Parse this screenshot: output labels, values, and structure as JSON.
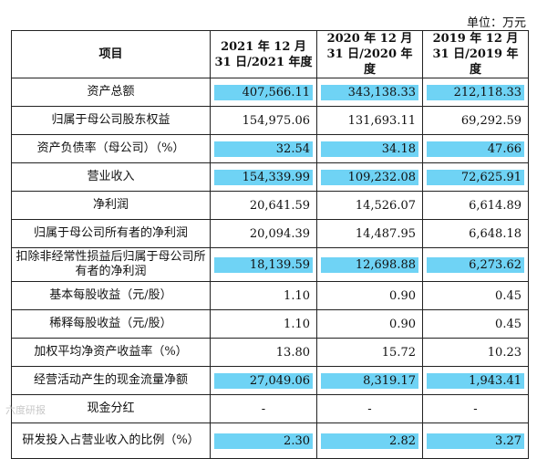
{
  "unit": "单位：万元",
  "headers": [
    "项目",
    "2021 年 12 月 31 日/2021 年度",
    "2020 年 12 月 31 日/2020 年度",
    "2019 年 12 月 31 日/2019 年度"
  ],
  "highlight_color": "#6fd3f5",
  "rows": [
    {
      "label": "资产总额",
      "values": [
        "407,566.11",
        "343,138.33",
        "212,118.33"
      ],
      "hl": [
        true,
        true,
        true
      ]
    },
    {
      "label": "归属于母公司股东权益",
      "values": [
        "154,975.06",
        "131,693.11",
        "69,292.59"
      ],
      "hl": [
        false,
        false,
        false
      ]
    },
    {
      "label": "资产负债率（母公司）（%）",
      "values": [
        "32.54",
        "34.18",
        "47.66"
      ],
      "hl": [
        true,
        true,
        true
      ]
    },
    {
      "label": "营业收入",
      "values": [
        "154,339.99",
        "109,232.08",
        "72,625.91"
      ],
      "hl": [
        true,
        true,
        true
      ]
    },
    {
      "label": "净利润",
      "values": [
        "20,641.59",
        "14,526.07",
        "6,614.89"
      ],
      "hl": [
        false,
        false,
        false
      ]
    },
    {
      "label": "归属于母公司所有者的净利润",
      "values": [
        "20,094.39",
        "14,487.95",
        "6,648.18"
      ],
      "hl": [
        false,
        false,
        false
      ]
    },
    {
      "label": "扣除非经常性损益后归属于母公司所有者的净利润",
      "values": [
        "18,139.59",
        "12,698.88",
        "6,273.62"
      ],
      "hl": [
        true,
        true,
        true
      ]
    },
    {
      "label": "基本每股收益（元/股）",
      "values": [
        "1.10",
        "0.90",
        "0.45"
      ],
      "hl": [
        false,
        false,
        false
      ]
    },
    {
      "label": "稀释每股收益（元/股）",
      "values": [
        "1.10",
        "0.90",
        "0.45"
      ],
      "hl": [
        false,
        false,
        false
      ]
    },
    {
      "label": "加权平均净资产收益率（%）",
      "values": [
        "13.80",
        "15.72",
        "10.23"
      ],
      "hl": [
        false,
        false,
        false
      ]
    },
    {
      "label": "经营活动产生的现金流量净额",
      "values": [
        "27,049.06",
        "8,319.17",
        "1,943.41"
      ],
      "hl": [
        true,
        true,
        true
      ]
    },
    {
      "label": "现金分红",
      "values": [
        "-",
        "-",
        "-"
      ],
      "hl": [
        false,
        false,
        false
      ]
    },
    {
      "label": "研发投入占营业收入的比例（%）",
      "values": [
        "2.30",
        "2.82",
        "3.27"
      ],
      "hl": [
        true,
        true,
        true
      ]
    }
  ],
  "watermark": "六度研报"
}
